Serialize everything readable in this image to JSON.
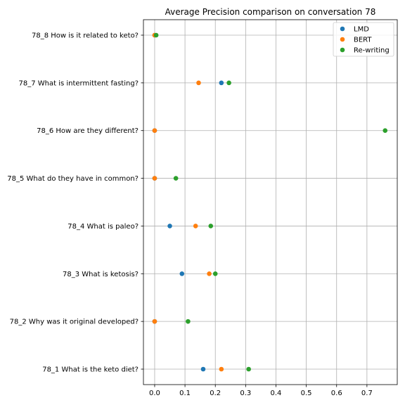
{
  "chart_data": {
    "type": "scatter",
    "title": "Average Precision comparison on conversation 78",
    "xlabel": "",
    "ylabel": "",
    "xlim": [
      -0.037,
      0.8
    ],
    "xticks": [
      0.0,
      0.1,
      0.2,
      0.3,
      0.4,
      0.5,
      0.6,
      0.7
    ],
    "xtick_labels": [
      "0.0",
      "0.1",
      "0.2",
      "0.3",
      "0.4",
      "0.5",
      "0.6",
      "0.7"
    ],
    "categories": [
      "78_1 What is the keto diet?",
      "78_2 Why was it original developed?",
      "78_3 What is ketosis?",
      "78_4 What is paleo?",
      "78_5 What do they have in common?",
      "78_6 How are they different?",
      "78_7 What is intermittent fasting?",
      "78_8 How is it related to keto?"
    ],
    "series": [
      {
        "name": "LMD",
        "color": "#1f77b4",
        "values": [
          0.16,
          0.0,
          0.09,
          0.05,
          0.0,
          0.0,
          0.22,
          0.0
        ]
      },
      {
        "name": "BERT",
        "color": "#ff7f0e",
        "values": [
          0.22,
          0.0,
          0.18,
          0.135,
          0.0,
          0.0,
          0.145,
          0.0
        ]
      },
      {
        "name": "Re-writing",
        "color": "#2ca02c",
        "values": [
          0.31,
          0.11,
          0.2,
          0.185,
          0.07,
          0.76,
          0.245,
          0.005
        ]
      }
    ],
    "grid": true,
    "legend_position": "top-right"
  }
}
